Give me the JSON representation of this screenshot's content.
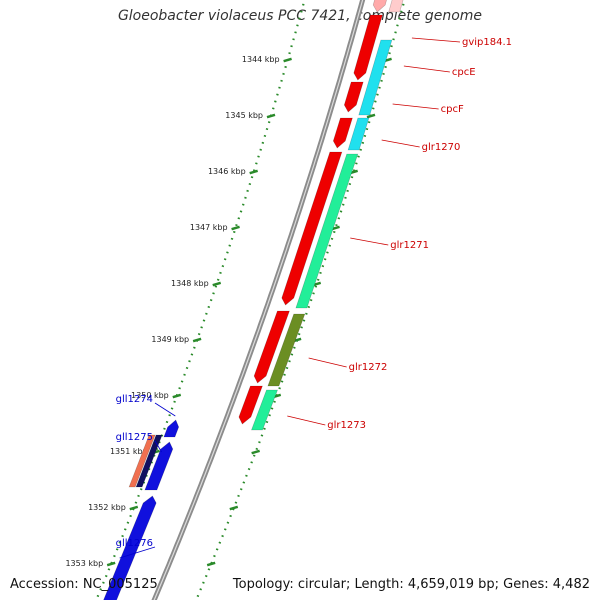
{
  "title": "Gloeobacter violaceus PCC 7421, complete genome",
  "footer": {
    "accession": "Accession: NC_005125",
    "topology": "Topology: circular; Length: 4,659,019 bp; Genes: 4,482"
  },
  "colors": {
    "forward_label": "#cc0000",
    "reverse_label": "#0000cc",
    "backbone": "#8c8c8c",
    "tick": "#2a8a2a"
  },
  "ticks": [
    {
      "kbp": 1344,
      "label": "1344 kbp"
    },
    {
      "kbp": 1345,
      "label": "1345 kbp"
    },
    {
      "kbp": 1346,
      "label": "1346 kbp"
    },
    {
      "kbp": 1347,
      "label": "1347 kbp"
    },
    {
      "kbp": 1348,
      "label": "1348 kbp"
    },
    {
      "kbp": 1349,
      "label": "1349 kbp"
    },
    {
      "kbp": 1350,
      "label": "1350 kbp"
    },
    {
      "kbp": 1351,
      "label": "1351 kbp"
    },
    {
      "kbp": 1352,
      "label": "1352 kbp"
    },
    {
      "kbp": 1353,
      "label": "1353 kbp"
    }
  ],
  "genes": [
    {
      "name": "gvip184.1",
      "strand": "forward"
    },
    {
      "name": "cpcE",
      "strand": "forward"
    },
    {
      "name": "cpcF",
      "strand": "forward"
    },
    {
      "name": "glr1270",
      "strand": "forward"
    },
    {
      "name": "glr1271",
      "strand": "forward"
    },
    {
      "name": "glr1272",
      "strand": "forward"
    },
    {
      "name": "glr1273",
      "strand": "forward"
    },
    {
      "name": "gll1274",
      "strand": "reverse"
    },
    {
      "name": "gll1275",
      "strand": "reverse"
    },
    {
      "name": "gll1276",
      "strand": "reverse"
    }
  ]
}
